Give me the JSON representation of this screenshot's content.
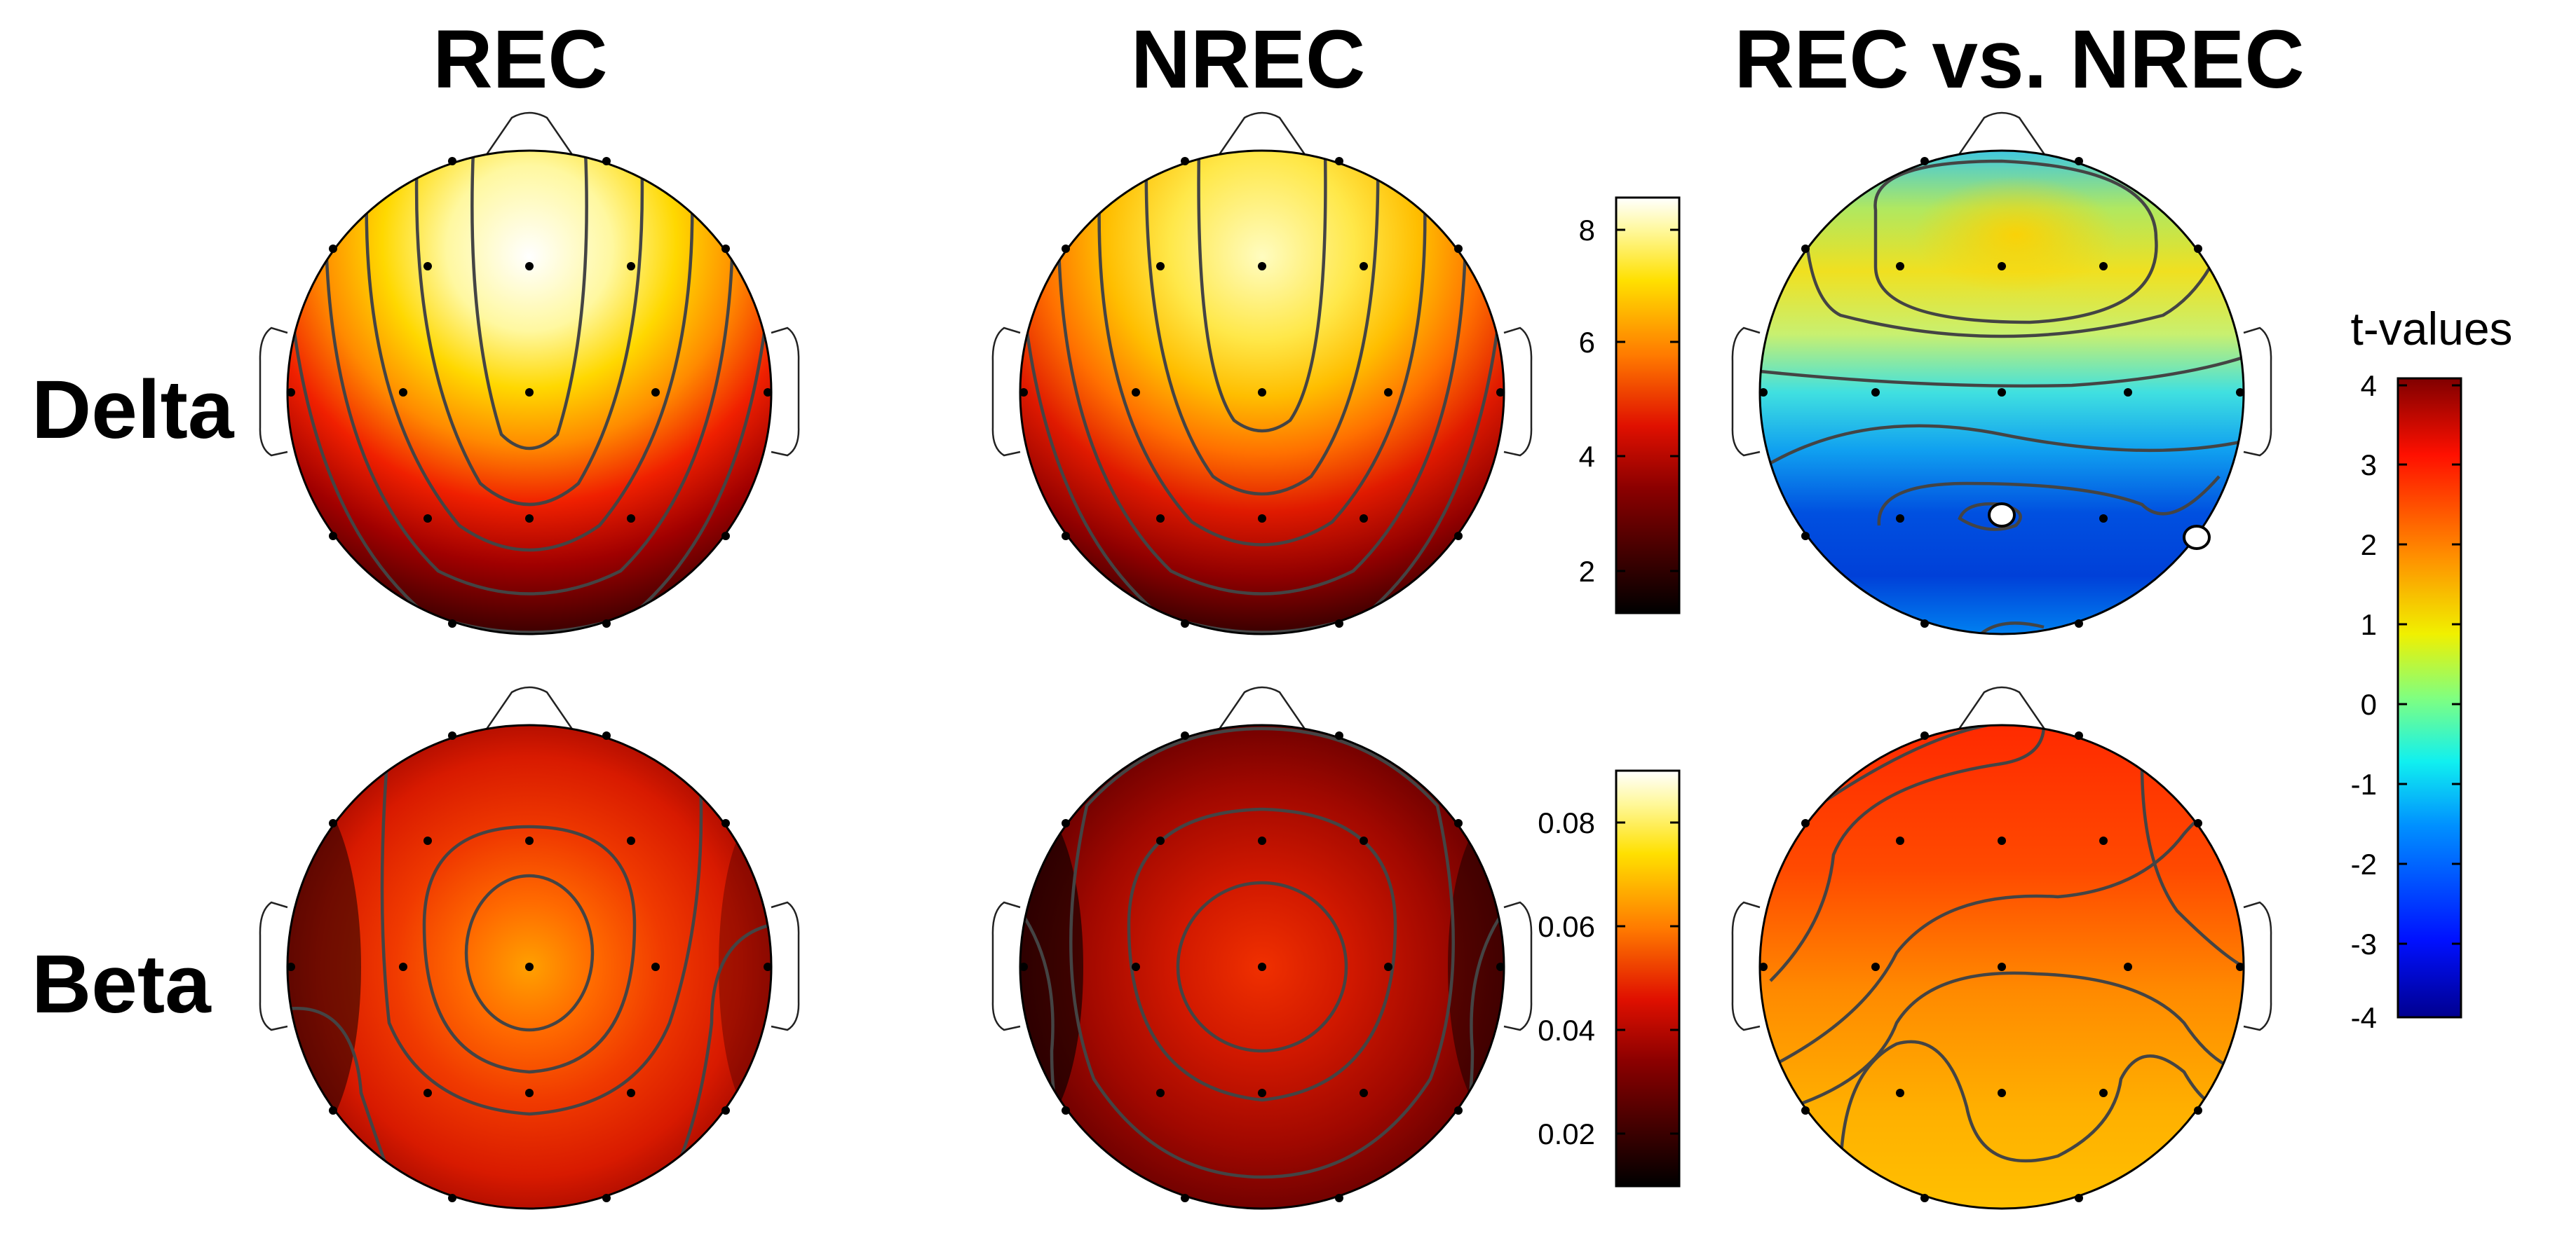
{
  "columns": [
    {
      "id": "rec",
      "title": "REC"
    },
    {
      "id": "nrec",
      "title": "NREC"
    },
    {
      "id": "diff",
      "title": "REC vs. NREC"
    }
  ],
  "rows": [
    {
      "id": "delta",
      "label": "Delta"
    },
    {
      "id": "beta",
      "label": "Beta"
    }
  ],
  "colorbars": {
    "delta": {
      "colormap": "hot",
      "range": [
        1.3,
        8.6
      ],
      "ticks": [
        "8",
        "6",
        "4",
        "2"
      ]
    },
    "beta": {
      "colormap": "hot",
      "range": [
        0.01,
        0.09
      ],
      "ticks": [
        "0.08",
        "0.06",
        "0.04",
        "0.02"
      ]
    },
    "tvalues": {
      "title": "t-values",
      "colormap": "jet",
      "range": [
        -4,
        4
      ],
      "ticks": [
        "4",
        "3",
        "2",
        "1",
        "0",
        "-1",
        "-2",
        "-3",
        "-4"
      ]
    }
  },
  "colors": {
    "electrode": "#000000",
    "significant_electrode": "#ffffff",
    "contour": "#444444"
  },
  "icons": [
    "head-nose-icon",
    "left-ear-icon",
    "right-ear-icon",
    "electrode-dot-icon"
  ]
}
